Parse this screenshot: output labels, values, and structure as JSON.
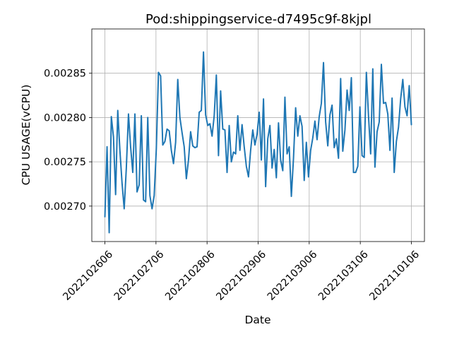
{
  "chart_data": {
    "type": "line",
    "title": "Pod:shippingservice-d7495c9f-8kjpl",
    "xlabel": "Date",
    "ylabel": "CPU USAGE(vCPU)",
    "x_tick_labels": [
      "2022102606",
      "2022102706",
      "2022102806",
      "2022102906",
      "2022103006",
      "2022103106",
      "2022110106"
    ],
    "y_tick_labels": [
      "0.00270",
      "0.00275",
      "0.00280",
      "0.00285"
    ],
    "y_ticks": [
      0.0027,
      0.00275,
      0.0028,
      0.00285
    ],
    "xlim": [
      -0.0427,
      1.0427
    ],
    "ylim": [
      0.00266,
      0.0029
    ],
    "grid": true,
    "color": "#1f77b4",
    "series": [
      {
        "values": [
          0.002688,
          0.002767,
          0.00267,
          0.002801,
          0.002778,
          0.002713,
          0.002808,
          0.002763,
          0.002726,
          0.002697,
          0.002743,
          0.002804,
          0.002767,
          0.002738,
          0.002804,
          0.002716,
          0.002724,
          0.002802,
          0.002707,
          0.002705,
          0.0028,
          0.002712,
          0.002697,
          0.002712,
          0.002765,
          0.002851,
          0.002847,
          0.002769,
          0.002773,
          0.002787,
          0.002785,
          0.002763,
          0.002748,
          0.002772,
          0.002843,
          0.0028,
          0.002783,
          0.002767,
          0.002731,
          0.002752,
          0.002784,
          0.002768,
          0.002766,
          0.002767,
          0.002806,
          0.002808,
          0.002874,
          0.002803,
          0.002791,
          0.002793,
          0.002779,
          0.002802,
          0.002848,
          0.002757,
          0.00283,
          0.002787,
          0.002786,
          0.002738,
          0.002791,
          0.00275,
          0.002761,
          0.002759,
          0.002802,
          0.002763,
          0.002792,
          0.002767,
          0.002745,
          0.002733,
          0.002763,
          0.002786,
          0.002769,
          0.002781,
          0.002806,
          0.002752,
          0.002821,
          0.002722,
          0.002776,
          0.002791,
          0.002743,
          0.002764,
          0.002732,
          0.002794,
          0.002752,
          0.00274,
          0.002823,
          0.002759,
          0.002767,
          0.002711,
          0.002754,
          0.002811,
          0.002779,
          0.002802,
          0.00279,
          0.002729,
          0.002772,
          0.002733,
          0.002763,
          0.002777,
          0.002796,
          0.002775,
          0.002801,
          0.002816,
          0.002862,
          0.002795,
          0.002768,
          0.002803,
          0.002814,
          0.002766,
          0.002776,
          0.002754,
          0.002844,
          0.002762,
          0.002786,
          0.002831,
          0.002808,
          0.002845,
          0.002738,
          0.002738,
          0.002745,
          0.002812,
          0.002757,
          0.002755,
          0.002851,
          0.002802,
          0.002759,
          0.002855,
          0.002744,
          0.002784,
          0.002795,
          0.00286,
          0.002816,
          0.002817,
          0.002804,
          0.002763,
          0.002822,
          0.002738,
          0.002773,
          0.002789,
          0.002821,
          0.002843,
          0.002812,
          0.002802,
          0.002836,
          0.002792
        ]
      }
    ]
  }
}
